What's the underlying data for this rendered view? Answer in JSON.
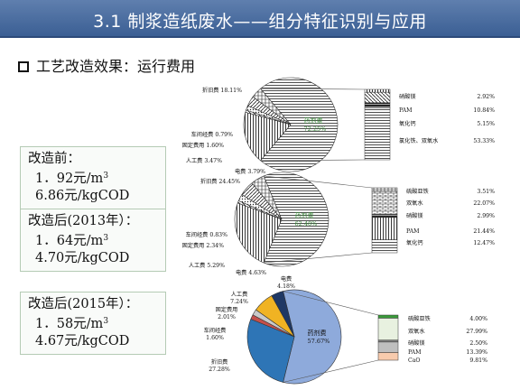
{
  "title": "3.1 制浆造纸废水——组分特征识别与应用",
  "heading": "工艺改造效果：运行费用",
  "boxes": [
    {
      "title": "改造前：",
      "cost_unit": "1．92元/m",
      "cost_sup": "3",
      "cost_cod": "6.86元/kgCOD"
    },
    {
      "title": "改造后(2013年）：",
      "cost_unit": "1．64元/m",
      "cost_sup": "3",
      "cost_cod": "4.70元/kgCOD"
    },
    {
      "title": "改造后(2015年）：",
      "cost_unit": "1．58元/m",
      "cost_sup": "3",
      "cost_cod": "4.67元/kgCOD"
    }
  ],
  "chart_data": [
    {
      "type": "pie",
      "slices": [
        {
          "label": "药剂费",
          "value": 72.25,
          "text": "72.25%"
        },
        {
          "label": "折旧费",
          "value": 18.11,
          "text": "18.11%"
        },
        {
          "label": "车间经费",
          "value": 0.79,
          "text": "0.79%"
        },
        {
          "label": "固定费用",
          "value": 1.6,
          "text": "1.60%"
        },
        {
          "label": "人工费",
          "value": 3.47,
          "text": "3.47%"
        },
        {
          "label": "电费",
          "value": 3.79,
          "text": "3.79%"
        }
      ],
      "breakdown": [
        {
          "label": "硝酸镁",
          "value": 2.92,
          "text": "2.92%"
        },
        {
          "label": "PAM",
          "value": 10.84,
          "text": "10.84%"
        },
        {
          "label": "氧化钙",
          "value": 5.15,
          "text": "5.15%"
        },
        {
          "label": "氯化铁、双氧水",
          "value": 53.33,
          "text": "53.33%"
        }
      ]
    },
    {
      "type": "pie",
      "slices": [
        {
          "label": "药剂费",
          "value": 62.48,
          "text": "62.48%"
        },
        {
          "label": "折旧费",
          "value": 24.45,
          "text": "24.45%"
        },
        {
          "label": "车间经费",
          "value": 0.83,
          "text": "0.83%"
        },
        {
          "label": "固定费用",
          "value": 2.34,
          "text": "2.34%"
        },
        {
          "label": "人工费",
          "value": 5.29,
          "text": "5.29%"
        },
        {
          "label": "电费",
          "value": 4.63,
          "text": "4.63%"
        }
      ],
      "breakdown": [
        {
          "label": "硫酸亚铁",
          "value": 3.51,
          "text": "3.51%"
        },
        {
          "label": "双氧水",
          "value": 22.07,
          "text": "22.07%"
        },
        {
          "label": "硝酸镁",
          "value": 2.99,
          "text": "2.99%"
        },
        {
          "label": "PAM",
          "value": 21.44,
          "text": "21.44%"
        },
        {
          "label": "氧化钙",
          "value": 12.47,
          "text": "12.47%"
        }
      ]
    },
    {
      "type": "pie",
      "slices": [
        {
          "label": "药剂费",
          "value": 57.67,
          "text": "57.67%",
          "color": "#8eaadb"
        },
        {
          "label": "折旧费",
          "value": 27.28,
          "text": "27.28%",
          "color": "#2e75b6"
        },
        {
          "label": "车间经费",
          "value": 1.6,
          "text": "1.60%",
          "color": "#c5504b"
        },
        {
          "label": "固定费用",
          "value": 2.01,
          "text": "2.01%",
          "color": "#c9c9c9"
        },
        {
          "label": "人工费",
          "value": 7.24,
          "text": "7.24%",
          "color": "#f0b323"
        },
        {
          "label": "电费",
          "value": 4.18,
          "text": "4.18%",
          "color": "#1f3864"
        }
      ],
      "breakdown": [
        {
          "label": "硫酸亚铁",
          "value": 4.0,
          "text": "4.00%",
          "color": "#3a9a3a"
        },
        {
          "label": "双氧水",
          "value": 27.99,
          "text": "27.99%",
          "color": "#e8f1e0"
        },
        {
          "label": "硝酸镁",
          "value": 2.5,
          "text": "2.50%",
          "color": "#7f7f7f"
        },
        {
          "label": "PAM",
          "value": 13.39,
          "text": "13.39%",
          "color": "#bfbfbf"
        },
        {
          "label": "CaO",
          "value": 9.81,
          "text": "9.81%",
          "color": "#f8cbad"
        }
      ]
    }
  ]
}
